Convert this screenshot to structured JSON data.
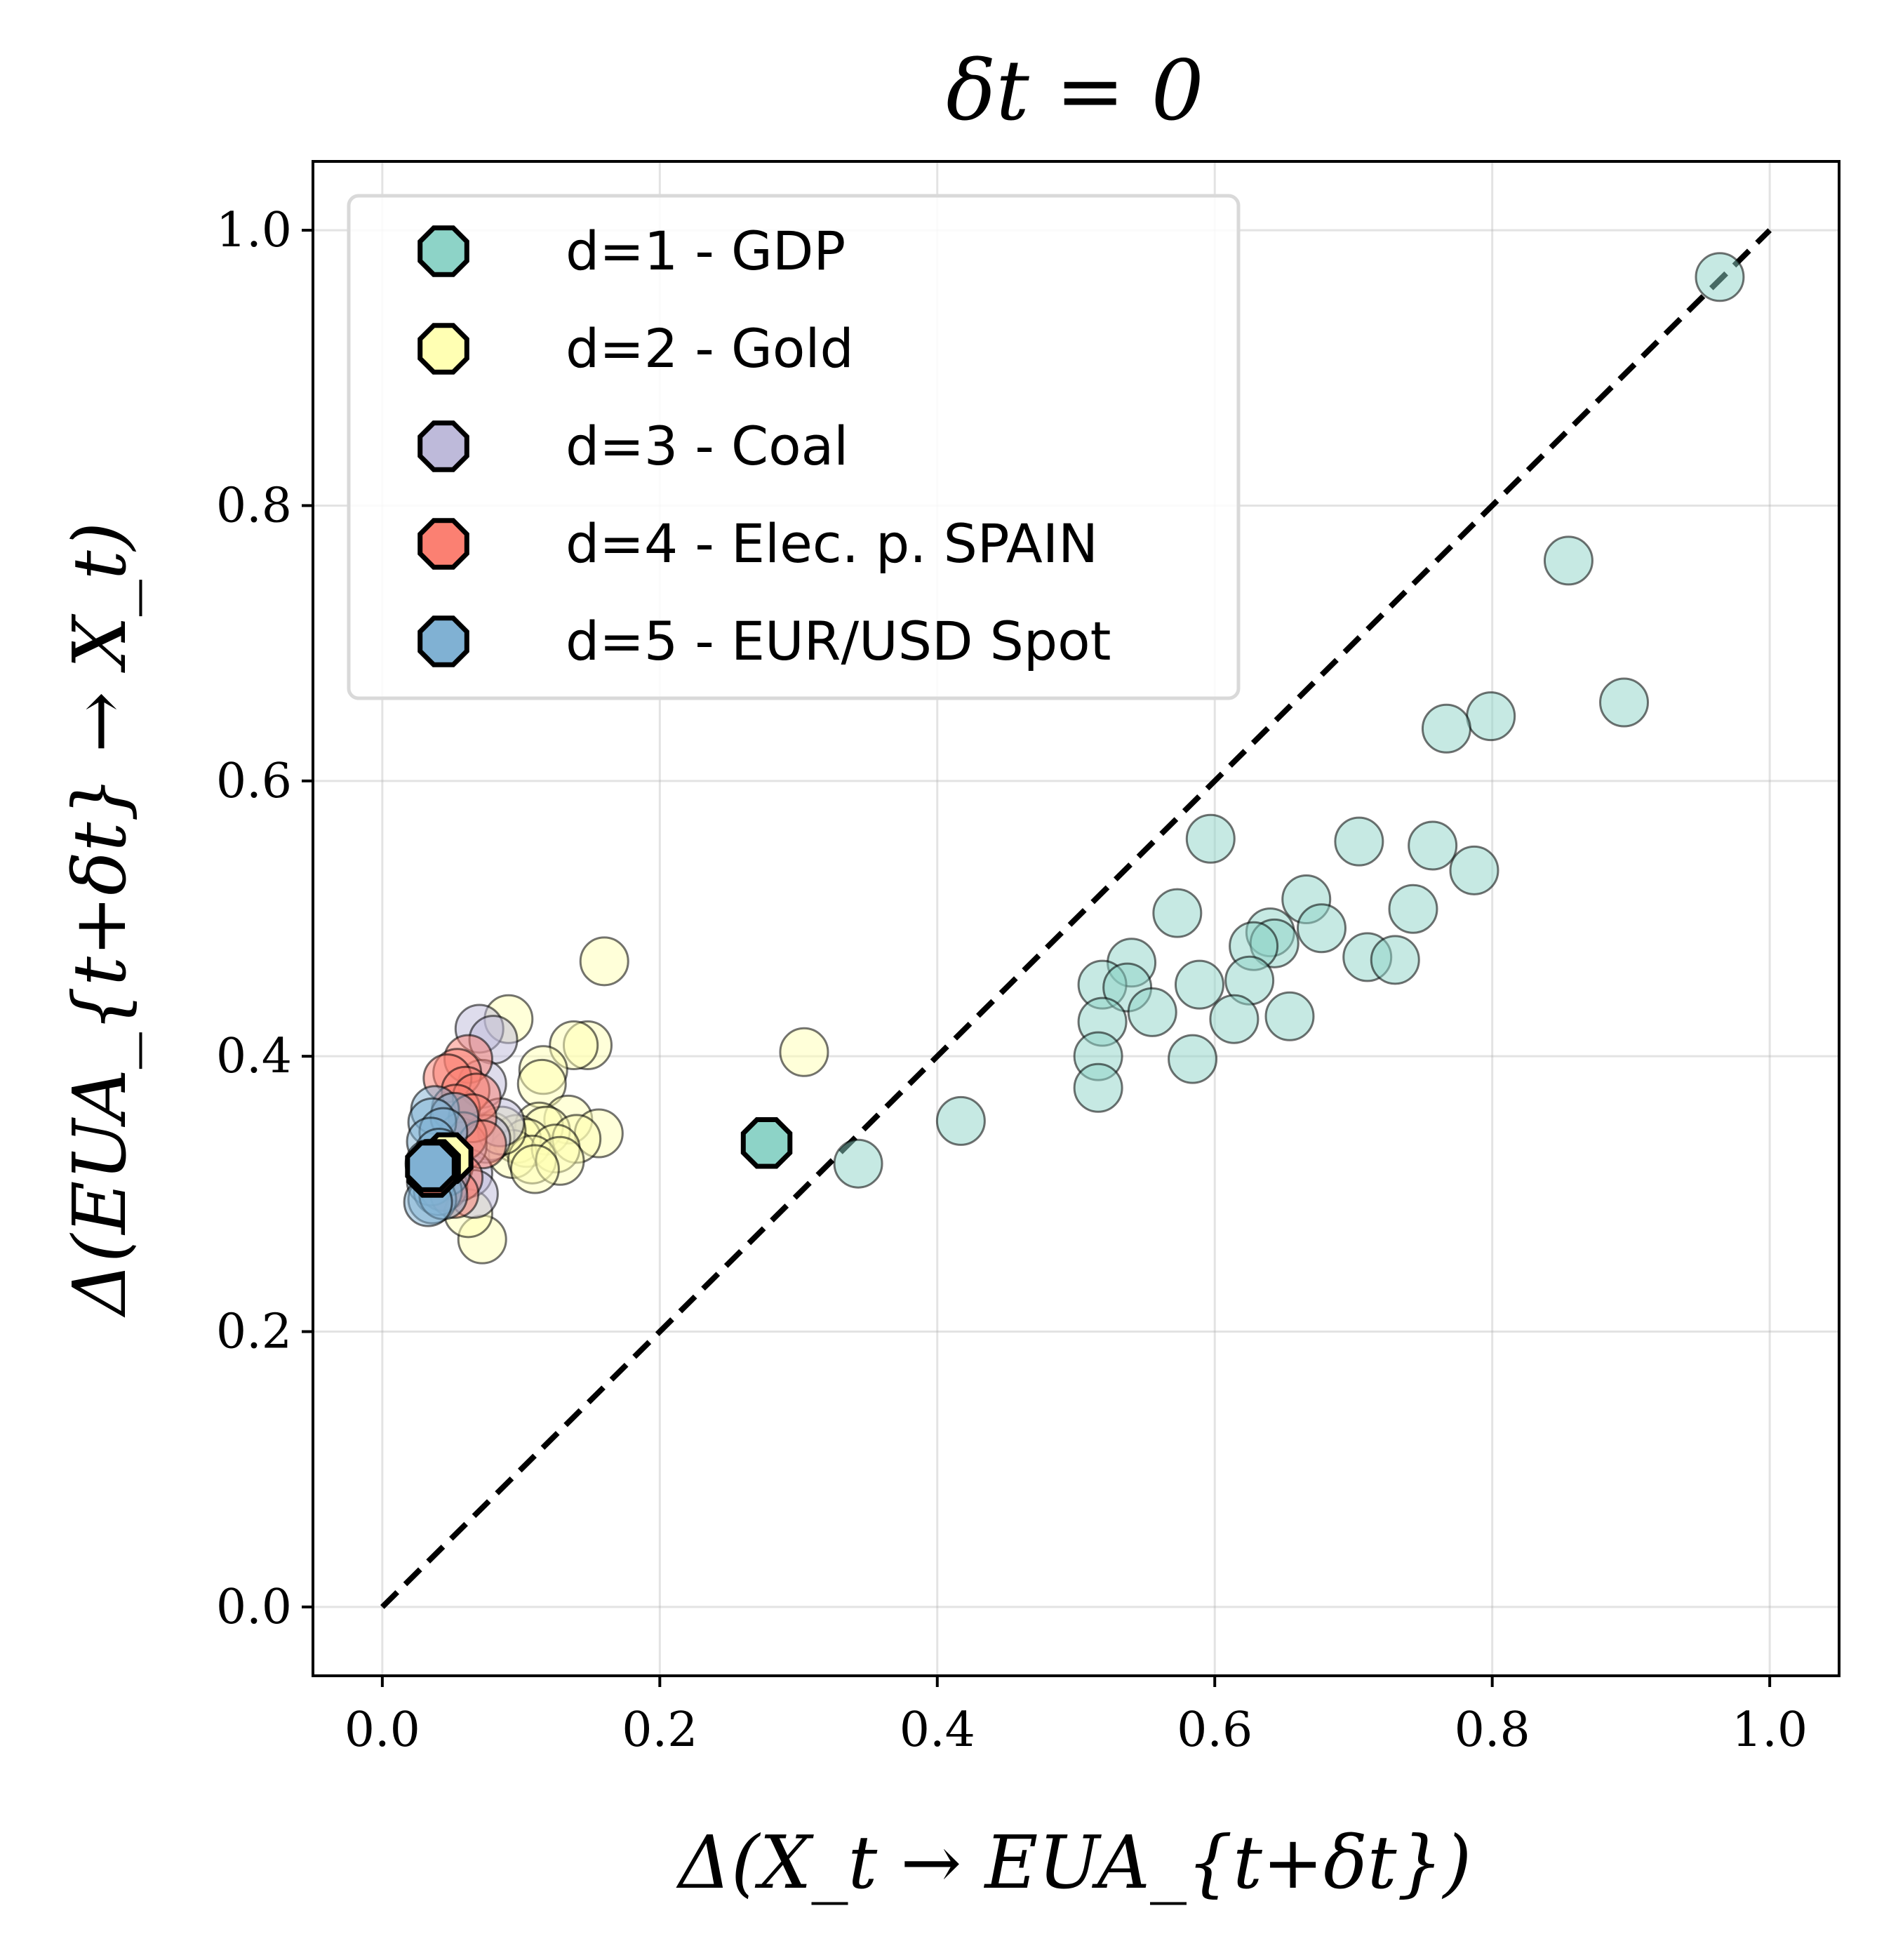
{
  "chart_data": {
    "type": "scatter",
    "title": "δt = 0",
    "xlabel": "Δ(X_t → EUA_{t+δt})",
    "ylabel": "Δ(EUA_{t+δt} → X_t)",
    "xlim": [
      -0.05,
      1.05
    ],
    "ylim": [
      -0.05,
      1.05
    ],
    "xticks": [
      "0.0",
      "0.2",
      "0.4",
      "0.6",
      "0.8",
      "1.0"
    ],
    "yticks": [
      "0.0",
      "0.2",
      "0.4",
      "0.6",
      "0.8",
      "1.0"
    ],
    "grid": true,
    "legend_position": "top-left",
    "reference_line": {
      "style": "dashed",
      "color": "#000000",
      "from": [
        0,
        0
      ],
      "to": [
        1,
        1
      ]
    },
    "series": [
      {
        "name": "d=1 - GDP",
        "color": "#8dd3c7",
        "highlight": [
          0.277,
          0.337
        ],
        "points": [
          [
            0.964,
            0.966
          ],
          [
            0.855,
            0.76
          ],
          [
            0.895,
            0.657
          ],
          [
            0.799,
            0.647
          ],
          [
            0.767,
            0.638
          ],
          [
            0.597,
            0.558
          ],
          [
            0.704,
            0.556
          ],
          [
            0.757,
            0.553
          ],
          [
            0.787,
            0.535
          ],
          [
            0.666,
            0.514
          ],
          [
            0.573,
            0.504
          ],
          [
            0.743,
            0.507
          ],
          [
            0.677,
            0.493
          ],
          [
            0.64,
            0.49
          ],
          [
            0.643,
            0.482
          ],
          [
            0.628,
            0.48
          ],
          [
            0.54,
            0.468
          ],
          [
            0.71,
            0.472
          ],
          [
            0.73,
            0.47
          ],
          [
            0.519,
            0.452
          ],
          [
            0.537,
            0.45
          ],
          [
            0.589,
            0.452
          ],
          [
            0.625,
            0.455
          ],
          [
            0.555,
            0.432
          ],
          [
            0.519,
            0.425
          ],
          [
            0.614,
            0.427
          ],
          [
            0.654,
            0.429
          ],
          [
            0.516,
            0.4
          ],
          [
            0.584,
            0.398
          ],
          [
            0.516,
            0.377
          ],
          [
            0.417,
            0.353
          ],
          [
            0.343,
            0.322
          ]
        ]
      },
      {
        "name": "d=2 - Gold",
        "color": "#ffffb3",
        "highlight": [
          0.047,
          0.326
        ],
        "points": [
          [
            0.16,
            0.469
          ],
          [
            0.304,
            0.403
          ],
          [
            0.091,
            0.427
          ],
          [
            0.148,
            0.408
          ],
          [
            0.138,
            0.408
          ],
          [
            0.116,
            0.39
          ],
          [
            0.115,
            0.38
          ],
          [
            0.134,
            0.354
          ],
          [
            0.113,
            0.349
          ],
          [
            0.118,
            0.346
          ],
          [
            0.156,
            0.344
          ],
          [
            0.097,
            0.34
          ],
          [
            0.104,
            0.337
          ],
          [
            0.14,
            0.34
          ],
          [
            0.094,
            0.329
          ],
          [
            0.125,
            0.333
          ],
          [
            0.108,
            0.325
          ],
          [
            0.128,
            0.324
          ],
          [
            0.11,
            0.318
          ],
          [
            0.072,
            0.267
          ],
          [
            0.062,
            0.286
          ],
          [
            0.078,
            0.342
          ],
          [
            0.086,
            0.346
          ]
        ]
      },
      {
        "name": "d=3 - Coal",
        "color": "#bebada",
        "highlight": [
          0.038,
          0.321
        ],
        "points": [
          [
            0.07,
            0.42
          ],
          [
            0.08,
            0.412
          ],
          [
            0.072,
            0.38
          ],
          [
            0.085,
            0.352
          ],
          [
            0.075,
            0.34
          ],
          [
            0.062,
            0.315
          ],
          [
            0.066,
            0.3
          ],
          [
            0.058,
            0.335
          ]
        ]
      },
      {
        "name": "d=4 - Elec. p. SPAIN",
        "color": "#fb8072",
        "highlight": [
          0.036,
          0.316
        ],
        "points": [
          [
            0.062,
            0.398
          ],
          [
            0.054,
            0.388
          ],
          [
            0.047,
            0.384
          ],
          [
            0.06,
            0.375
          ],
          [
            0.068,
            0.37
          ],
          [
            0.053,
            0.362
          ],
          [
            0.065,
            0.355
          ],
          [
            0.058,
            0.342
          ],
          [
            0.072,
            0.336
          ],
          [
            0.048,
            0.32
          ],
          [
            0.055,
            0.312
          ],
          [
            0.044,
            0.305
          ],
          [
            0.052,
            0.3
          ]
        ]
      },
      {
        "name": "d=5 - EUR/USD Spot",
        "color": "#80b1d3",
        "highlight": [
          0.035,
          0.32
        ],
        "points": [
          [
            0.038,
            0.361
          ],
          [
            0.052,
            0.356
          ],
          [
            0.036,
            0.352
          ],
          [
            0.044,
            0.345
          ],
          [
            0.035,
            0.338
          ],
          [
            0.041,
            0.33
          ],
          [
            0.034,
            0.322
          ],
          [
            0.046,
            0.316
          ],
          [
            0.035,
            0.309
          ],
          [
            0.04,
            0.302
          ],
          [
            0.036,
            0.296
          ],
          [
            0.044,
            0.299
          ],
          [
            0.033,
            0.294
          ]
        ]
      }
    ]
  }
}
